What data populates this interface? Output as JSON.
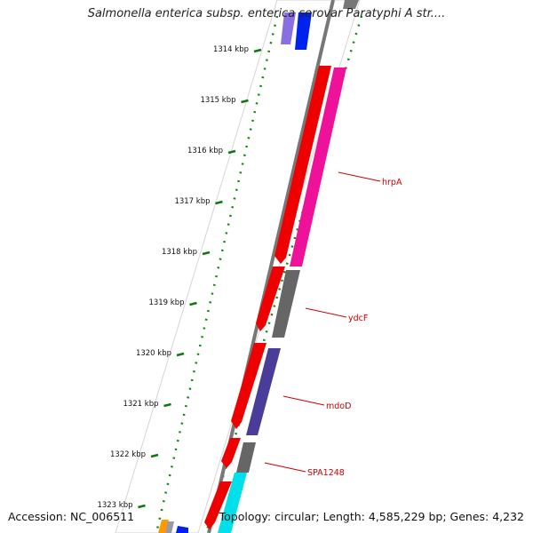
{
  "title": "Salmonella enterica subsp. enterica serovar Paratyphi A str....",
  "footer": {
    "accession": "Accession: NC_006511",
    "summary": "Topology: circular; Length: 4,585,229 bp; Genes: 4,232"
  },
  "ticks": [
    "1314 kbp",
    "1315 kbp",
    "1316 kbp",
    "1317 kbp",
    "1318 kbp",
    "1319 kbp",
    "1320 kbp",
    "1321 kbp",
    "1322 kbp",
    "1323 kbp"
  ],
  "gene_labels": [
    "hrpA",
    "ydcF",
    "mdoD",
    "SPA1248"
  ],
  "colors": {
    "forward_cds": "#ee0000",
    "hrpA": "#ee1199",
    "gray_cds": "#666666",
    "mdoD": "#4a3d99",
    "cyan_cds": "#00e0e8",
    "blue_cds": "#0022ee",
    "purple_cds": "#8a6fe0",
    "orange_cds": "#ff9900",
    "tick": "#117711",
    "backbone": "#777777",
    "label": "#cc0000"
  }
}
